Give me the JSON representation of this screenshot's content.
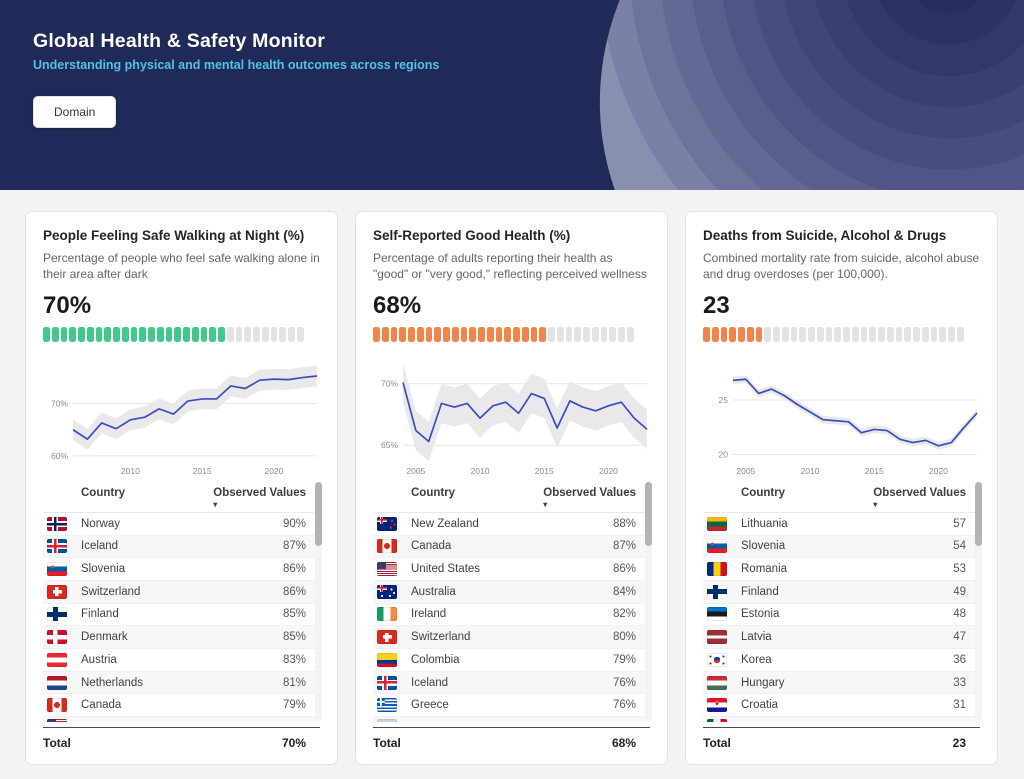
{
  "header": {
    "title": "Global Health & Safety Monitor",
    "subtitle": "Understanding physical and mental health outcomes across regions",
    "button_label": "Domain"
  },
  "colors": {
    "hero_bg": "#202a58",
    "subtitle_accent": "#4fc4e8",
    "green_accent": "#41c98b",
    "orange_accent": "#f08449",
    "bar_empty": "#e3e3e3",
    "line_blue": "#3c4cc0",
    "band_gray": "#e9e9eb"
  },
  "cards": [
    {
      "title": "People Feeling Safe Walking at Night (%)",
      "description": "Percentage of people who feel safe walking alone in their area after dark",
      "value_label": "70%",
      "bar": {
        "segments": 30,
        "filled": 21,
        "color": "#41c98b",
        "empty_color": "#e3e3e3"
      },
      "chart_style": {
        "line_color": "#3c4cc0",
        "band_color": "#e9e9eb",
        "ylim": [
          59.2,
          77.6
        ],
        "yticks": [
          {
            "v": 70,
            "label": "70%"
          },
          {
            "v": 60,
            "label": "60%"
          }
        ],
        "xticks": [
          {
            "v": 2010,
            "label": "2010"
          },
          {
            "v": 2015,
            "label": "2015"
          },
          {
            "v": 2020,
            "label": "2020"
          }
        ]
      },
      "table": {
        "columns": [
          "Country",
          "Observed Values"
        ],
        "rows": [
          {
            "flag": "no",
            "country": "Norway",
            "value": "90%"
          },
          {
            "flag": "is",
            "country": "Iceland",
            "value": "87%"
          },
          {
            "flag": "si",
            "country": "Slovenia",
            "value": "86%"
          },
          {
            "flag": "ch",
            "country": "Switzerland",
            "value": "86%"
          },
          {
            "flag": "fi",
            "country": "Finland",
            "value": "85%"
          },
          {
            "flag": "dk",
            "country": "Denmark",
            "value": "85%"
          },
          {
            "flag": "at",
            "country": "Austria",
            "value": "83%"
          },
          {
            "flag": "nl",
            "country": "Netherlands",
            "value": "81%"
          },
          {
            "flag": "ca",
            "country": "Canada",
            "value": "79%"
          }
        ],
        "partial_flag": "us",
        "total_label": "Total",
        "total_value": "70%"
      }
    },
    {
      "title": "Self-Reported Good Health (%)",
      "description": "Percentage of adults reporting their health as \"good\" or \"very good,\" reflecting perceived wellness",
      "value_label": "68%",
      "bar": {
        "segments": 30,
        "filled": 20,
        "color": "#f08449",
        "empty_color": "#e3e3e3"
      },
      "chart_style": {
        "line_color": "#3c4cc0",
        "band_color": "#e9e9eb",
        "ylim": [
          63.8,
          71.6
        ],
        "yticks": [
          {
            "v": 70,
            "label": "70%"
          },
          {
            "v": 65,
            "label": "65%"
          }
        ],
        "xticks": [
          {
            "v": 2005,
            "label": "2005"
          },
          {
            "v": 2010,
            "label": "2010"
          },
          {
            "v": 2015,
            "label": "2015"
          },
          {
            "v": 2020,
            "label": "2020"
          }
        ]
      },
      "table": {
        "columns": [
          "Country",
          "Observed Values"
        ],
        "rows": [
          {
            "flag": "nz",
            "country": "New Zealand",
            "value": "88%"
          },
          {
            "flag": "ca",
            "country": "Canada",
            "value": "87%"
          },
          {
            "flag": "us",
            "country": "United States",
            "value": "86%"
          },
          {
            "flag": "au",
            "country": "Australia",
            "value": "84%"
          },
          {
            "flag": "ie",
            "country": "Ireland",
            "value": "82%"
          },
          {
            "flag": "ch",
            "country": "Switzerland",
            "value": "80%"
          },
          {
            "flag": "co",
            "country": "Colombia",
            "value": "79%"
          },
          {
            "flag": "is",
            "country": "Iceland",
            "value": "76%"
          },
          {
            "flag": "gr",
            "country": "Greece",
            "value": "76%"
          }
        ],
        "partial_flag": "xx",
        "total_label": "Total",
        "total_value": "68%"
      }
    },
    {
      "title": "Deaths from Suicide, Alcohol & Drugs",
      "description": "Combined mortality rate from suicide, alcohol abuse and drug overdoses (per 100,000).",
      "value_label": "23",
      "bar": {
        "segments": 30,
        "filled": 7,
        "color": "#f08449",
        "empty_color": "#e3e3e3"
      },
      "chart_style": {
        "line_color": "#3c4cc0",
        "band_color": "#e9e9eb",
        "ylim": [
          19.5,
          28.3
        ],
        "yticks": [
          {
            "v": 25,
            "label": "25"
          },
          {
            "v": 20,
            "label": "20"
          }
        ],
        "xticks": [
          {
            "v": 2005,
            "label": "2005"
          },
          {
            "v": 2010,
            "label": "2010"
          },
          {
            "v": 2015,
            "label": "2015"
          },
          {
            "v": 2020,
            "label": "2020"
          }
        ]
      },
      "table": {
        "columns": [
          "Country",
          "Observed Values"
        ],
        "rows": [
          {
            "flag": "lt",
            "country": "Lithuania",
            "value": "57"
          },
          {
            "flag": "si",
            "country": "Slovenia",
            "value": "54"
          },
          {
            "flag": "ro",
            "country": "Romania",
            "value": "53"
          },
          {
            "flag": "fi",
            "country": "Finland",
            "value": "49"
          },
          {
            "flag": "ee",
            "country": "Estonia",
            "value": "48"
          },
          {
            "flag": "lv",
            "country": "Latvia",
            "value": "47"
          },
          {
            "flag": "kr",
            "country": "Korea",
            "value": "36"
          },
          {
            "flag": "hu",
            "country": "Hungary",
            "value": "33"
          },
          {
            "flag": "hr",
            "country": "Croatia",
            "value": "31"
          }
        ],
        "partial_flag": "mx",
        "total_label": "Total",
        "total_value": "23"
      }
    }
  ],
  "chart_data": [
    {
      "type": "line",
      "title": "People Feeling Safe Walking at Night (%) trend",
      "x": [
        2006,
        2007,
        2008,
        2009,
        2010,
        2011,
        2012,
        2013,
        2014,
        2015,
        2016,
        2017,
        2018,
        2019,
        2020,
        2021,
        2022,
        2023
      ],
      "series": [
        {
          "name": "Observed Values",
          "values": [
            65.0,
            63.2,
            66.3,
            65.2,
            66.9,
            67.4,
            69.0,
            68.0,
            70.5,
            70.9,
            70.9,
            73.4,
            72.9,
            74.5,
            74.7,
            74.6,
            75.0,
            75.3
          ]
        }
      ],
      "band_delta": 2.0,
      "ylabel_ticks": [
        "60%",
        "70%"
      ],
      "xlabel_ticks": [
        "2010",
        "2015",
        "2020"
      ],
      "grid": true,
      "legend": false
    },
    {
      "type": "line",
      "title": "Self-Reported Good Health (%) trend",
      "x": [
        2004,
        2005,
        2006,
        2007,
        2008,
        2009,
        2010,
        2011,
        2012,
        2013,
        2014,
        2015,
        2016,
        2017,
        2018,
        2019,
        2020,
        2021,
        2022,
        2023
      ],
      "series": [
        {
          "name": "Observed Values",
          "values": [
            70.1,
            66.2,
            65.3,
            68.4,
            68.1,
            68.4,
            67.2,
            68.2,
            68.5,
            67.6,
            69.2,
            68.8,
            66.4,
            68.6,
            68.1,
            67.8,
            68.2,
            68.5,
            67.2,
            66.3
          ]
        }
      ],
      "band_delta": 1.6,
      "ylabel_ticks": [
        "65%",
        "70%"
      ],
      "xlabel_ticks": [
        "2005",
        "2010",
        "2015",
        "2020"
      ],
      "grid": true,
      "legend": false
    },
    {
      "type": "line",
      "title": "Deaths from Suicide, Alcohol & Drugs (per 100,000) trend",
      "x": [
        2004,
        2005,
        2006,
        2007,
        2008,
        2009,
        2010,
        2011,
        2012,
        2013,
        2014,
        2015,
        2016,
        2017,
        2018,
        2019,
        2020,
        2021,
        2022,
        2023
      ],
      "series": [
        {
          "name": "Observed Values",
          "values": [
            26.8,
            26.9,
            25.6,
            26.0,
            25.4,
            24.6,
            23.9,
            23.2,
            23.1,
            23.0,
            22.0,
            22.3,
            22.2,
            21.4,
            21.1,
            21.3,
            20.8,
            21.1,
            22.5,
            23.8
          ]
        }
      ],
      "band_delta": 0.35,
      "ylabel_ticks": [
        "20",
        "25"
      ],
      "xlabel_ticks": [
        "2005",
        "2010",
        "2015",
        "2020"
      ],
      "grid": true,
      "legend": false
    }
  ]
}
